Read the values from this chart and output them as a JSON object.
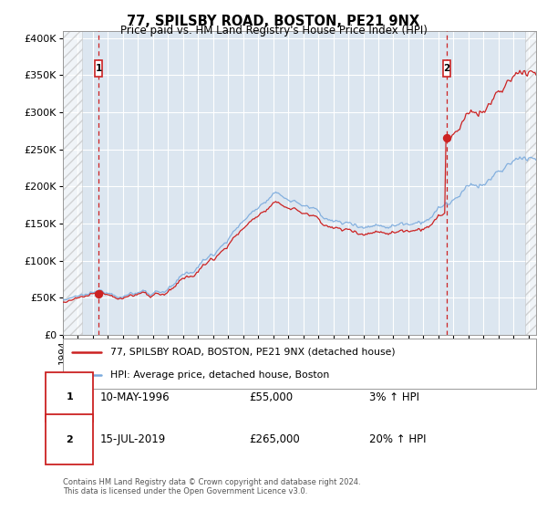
{
  "title": "77, SPILSBY ROAD, BOSTON, PE21 9NX",
  "subtitle": "Price paid vs. HM Land Registry's House Price Index (HPI)",
  "legend_line1": "77, SPILSBY ROAD, BOSTON, PE21 9NX (detached house)",
  "legend_line2": "HPI: Average price, detached house, Boston",
  "annotation1_date": "10-MAY-1996",
  "annotation1_price": 55000,
  "annotation1_hpi_text": "3% ↑ HPI",
  "annotation1_year": 1996.37,
  "annotation2_date": "15-JUL-2019",
  "annotation2_price": 265000,
  "annotation2_year": 2019.54,
  "annotation2_hpi_text": "20% ↑ HPI",
  "start_year": 1994.0,
  "end_year": 2025.5,
  "ylim_max": 410000,
  "hpi_color": "#7aaadd",
  "price_color": "#cc2222",
  "dashed_line_color": "#cc2222",
  "plot_bg_color": "#dce6f0",
  "footnote": "Contains HM Land Registry data © Crown copyright and database right 2024.\nThis data is licensed under the Open Government Licence v3.0."
}
